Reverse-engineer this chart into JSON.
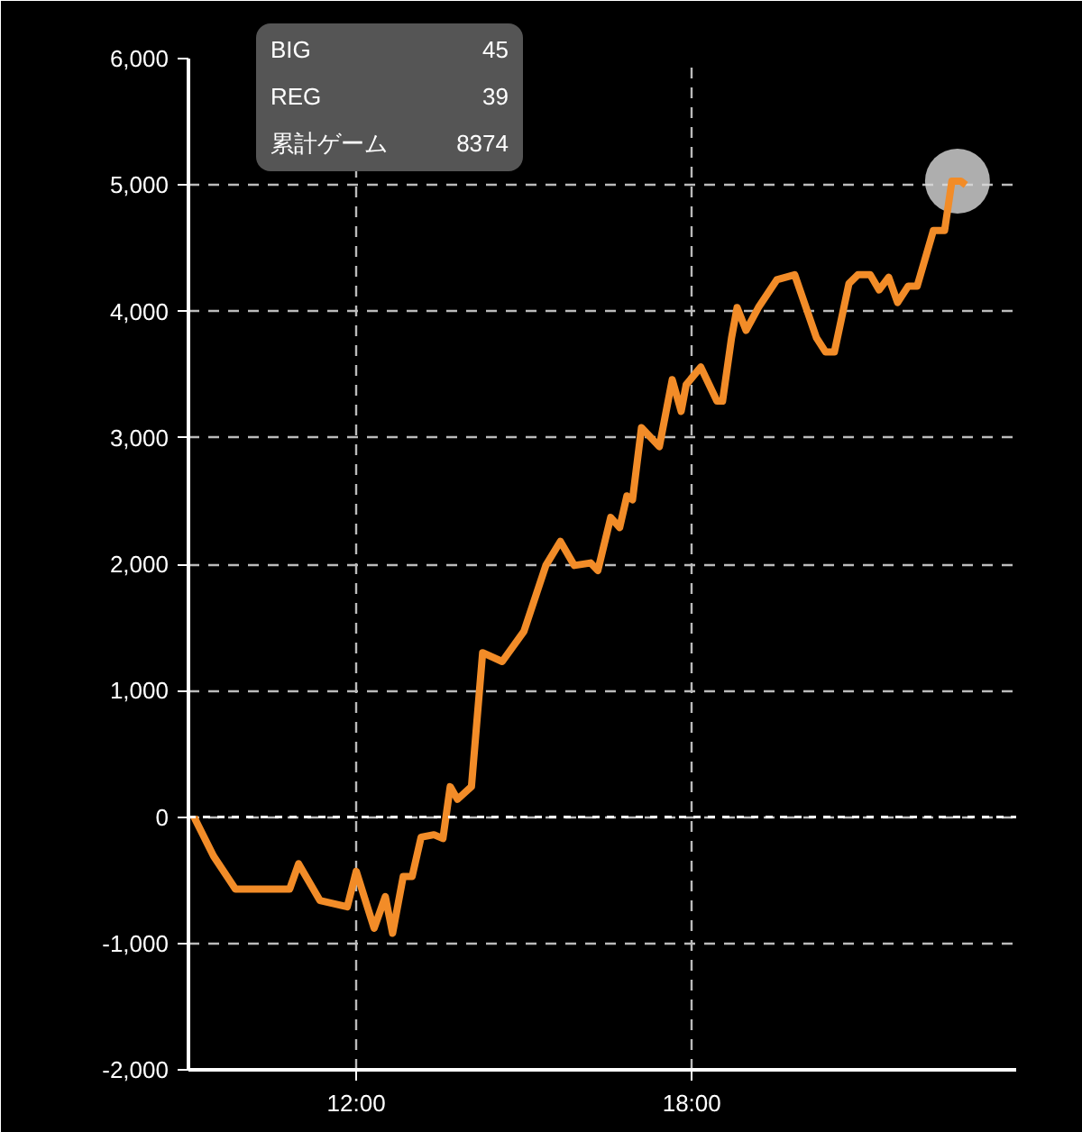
{
  "chart_data": {
    "type": "line",
    "annotations": [
      "BIG",
      "45",
      "REG",
      "39",
      "累計ゲーム",
      "8374"
    ],
    "x": [
      9.1,
      9.45,
      9.84,
      10.81,
      10.97,
      11.35,
      11.84,
      12.0,
      12.32,
      12.52,
      12.65,
      12.84,
      13.0,
      13.16,
      13.39,
      13.55,
      13.68,
      13.81,
      14.06,
      14.26,
      14.61,
      15.0,
      15.39,
      15.65,
      15.9,
      16.19,
      16.32,
      16.55,
      16.71,
      16.84,
      16.94,
      17.1,
      17.42,
      17.65,
      17.81,
      17.9,
      18.16,
      18.45,
      18.55,
      18.71,
      18.81,
      18.97,
      19.19,
      19.52,
      19.84,
      20.23,
      20.39,
      20.55,
      20.81,
      20.97,
      21.19,
      21.35,
      21.52,
      21.68,
      21.87,
      22.03,
      22.32,
      22.52,
      22.65,
      22.81,
      22.9
    ],
    "series": [
      {
        "color": "#f28c28",
        "values": [
          0,
          -310,
          -570,
          -570,
          -370,
          -660,
          -710,
          -430,
          -880,
          -630,
          -920,
          -470,
          -470,
          -160,
          -140,
          -170,
          240,
          140,
          240,
          1300,
          1230,
          1470,
          1990,
          2180,
          1990,
          2010,
          1950,
          2370,
          2290,
          2540,
          2510,
          3080,
          2930,
          3460,
          3210,
          3420,
          3560,
          3290,
          3290,
          3790,
          4030,
          3850,
          4030,
          4250,
          4290,
          3790,
          3680,
          3680,
          4220,
          4290,
          4290,
          4170,
          4270,
          4070,
          4200,
          4200,
          4640,
          4640,
          5030,
          5030,
          5000
        ]
      },
      {
        "type": "scatter",
        "marker": "circle",
        "color": "#d9d9d9",
        "x": [
          22.75
        ],
        "values": [
          5030
        ]
      }
    ],
    "xlim": [
      9,
      23.8
    ],
    "xticks": [
      {
        "value": 12,
        "label": "12:00"
      },
      {
        "value": 18,
        "label": "18:00"
      }
    ],
    "ylim": [
      -2000,
      6000
    ],
    "yticks": [
      {
        "value": -2000,
        "label": "-2,000"
      },
      {
        "value": -1000,
        "label": "-1,000"
      },
      {
        "value": 0,
        "label": "0"
      },
      {
        "value": 1000,
        "label": "1,000"
      },
      {
        "value": 2000,
        "label": "2,000"
      },
      {
        "value": 3000,
        "label": "3,000"
      },
      {
        "value": 4000,
        "label": "4,000"
      },
      {
        "value": 5000,
        "label": "5,000"
      },
      {
        "value": 6000,
        "label": "6,000"
      }
    ],
    "ref_lines": [
      {
        "axis": "y",
        "value": 0,
        "color": "#ffffff",
        "line_style": "dashed"
      }
    ],
    "grid": true,
    "line_style": "solid"
  }
}
